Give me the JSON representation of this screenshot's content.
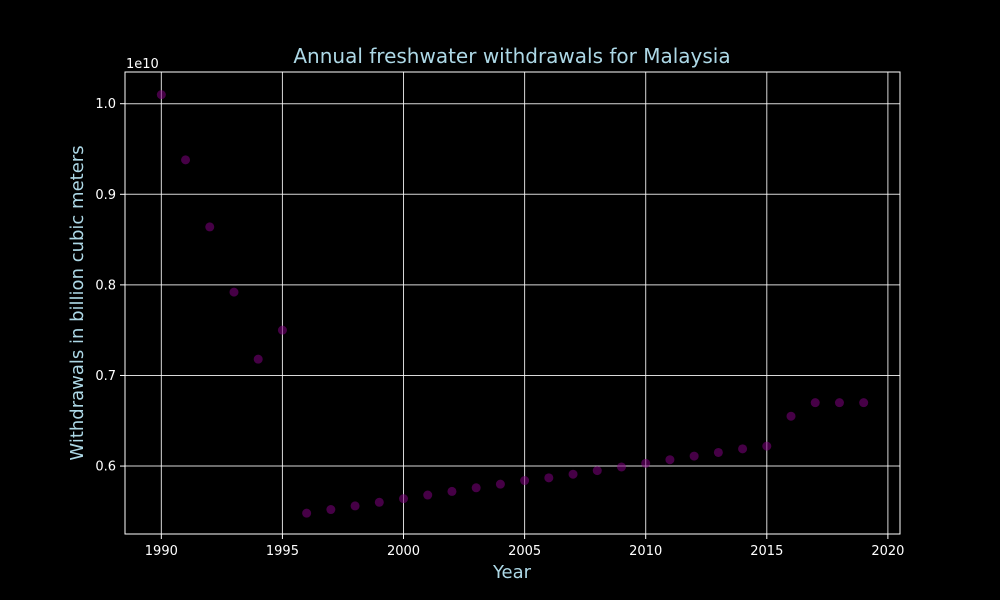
{
  "chart_data": {
    "type": "scatter",
    "title": "Annual freshwater withdrawals for Malaysia",
    "xlabel": "Year",
    "ylabel": "Withdrawals in billion cubic meters",
    "y_offset_label": "1e10",
    "xlim": [
      1988.5,
      2020.5
    ],
    "ylim": [
      5250000000,
      10350000000
    ],
    "x_ticks": [
      1990,
      1995,
      2000,
      2005,
      2010,
      2015,
      2020
    ],
    "x_tick_labels": [
      "1990",
      "1995",
      "2000",
      "2005",
      "2010",
      "2015",
      "2020"
    ],
    "y_ticks": [
      6000000000,
      7000000000,
      8000000000,
      9000000000,
      10000000000
    ],
    "y_tick_labels": [
      "0.6",
      "0.7",
      "0.8",
      "0.9",
      "1.0"
    ],
    "grid": true,
    "legend": "none",
    "marker_color": "#800080",
    "background_color": "#000000",
    "series": [
      {
        "x": [
          1990,
          1991,
          1992,
          1993,
          1994,
          1995,
          1996,
          1997,
          1998,
          1999,
          2000,
          2001,
          2002,
          2003,
          2004,
          2005,
          2006,
          2007,
          2008,
          2009,
          2010,
          2011,
          2012,
          2013,
          2014,
          2015,
          2016,
          2017,
          2018,
          2019
        ],
        "y": [
          10100000000,
          9380000000,
          8640000000,
          7920000000,
          7180000000,
          7500000000,
          5480000000,
          5520000000,
          5560000000,
          5600000000,
          5640000000,
          5680000000,
          5720000000,
          5760000000,
          5800000000,
          5840000000,
          5870000000,
          5910000000,
          5950000000,
          5990000000,
          6030000000,
          6070000000,
          6110000000,
          6150000000,
          6190000000,
          6220000000,
          6550000000,
          6700000000,
          6700000000,
          6700000000
        ]
      }
    ]
  }
}
